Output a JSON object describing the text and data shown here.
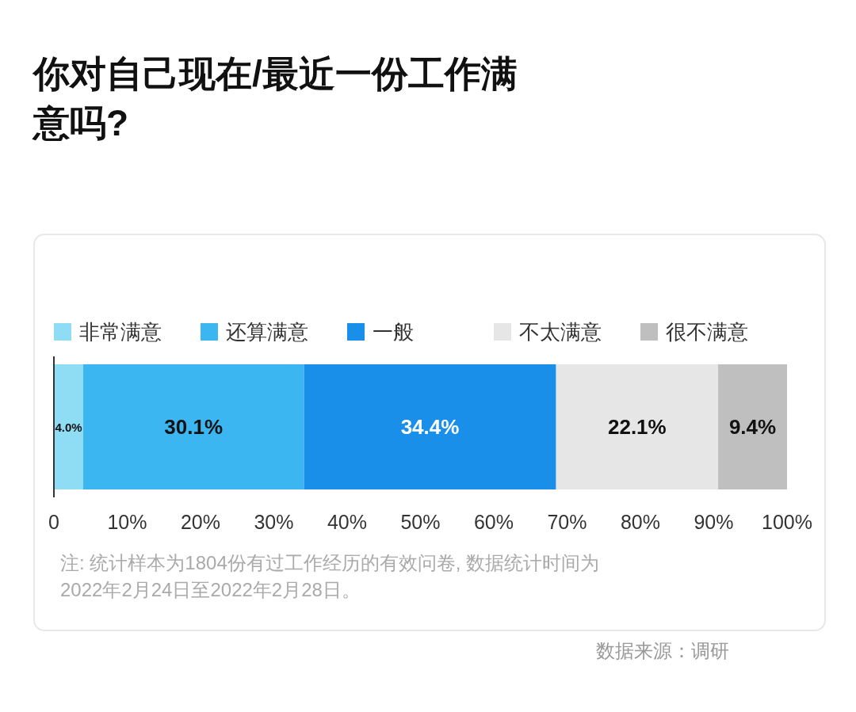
{
  "chart_data": {
    "type": "bar",
    "orientation": "horizontal",
    "stacked": true,
    "title": "你对自己现在/最近一份工作满意吗?",
    "categories": [
      null
    ],
    "series": [
      {
        "name": "非常满意",
        "color": "#8fdcf5",
        "values": [
          4.0
        ],
        "value_labels": [
          "4.0%"
        ]
      },
      {
        "name": "还算满意",
        "color": "#3cb6f0",
        "values": [
          30.1
        ],
        "value_labels": [
          "30.1%"
        ]
      },
      {
        "name": "一般",
        "color": "#1a8fea",
        "values": [
          34.4
        ],
        "value_labels": [
          "34.4%"
        ]
      },
      {
        "name": "不太满意",
        "color": "#e6e6e6",
        "values": [
          22.1
        ],
        "value_labels": [
          "22.1%"
        ]
      },
      {
        "name": "很不满意",
        "color": "#bfbfbf",
        "values": [
          9.4
        ],
        "value_labels": [
          "9.4%"
        ]
      }
    ],
    "xlim": [
      0,
      100
    ],
    "xticks": [
      0,
      {
        "value": 10,
        "label": "10%"
      },
      {
        "value": 20,
        "label": "20%"
      },
      {
        "value": 30,
        "label": "30%"
      },
      {
        "value": 40,
        "label": "40%"
      },
      {
        "value": 50,
        "label": "50%"
      },
      {
        "value": 60,
        "label": "60%"
      },
      {
        "value": 70,
        "label": "70%"
      },
      {
        "value": 80,
        "label": "80%"
      },
      {
        "value": 90,
        "label": "90%"
      },
      {
        "value": 100,
        "label": "100%"
      }
    ],
    "legend": "top",
    "tick_labels": "x",
    "annotations": [
      "注: 统计样本为1804份有过工作经历的有效问卷, 数据统计时间为2022年2月24日至2022年2月28日。",
      "数据来源：调研"
    ]
  }
}
